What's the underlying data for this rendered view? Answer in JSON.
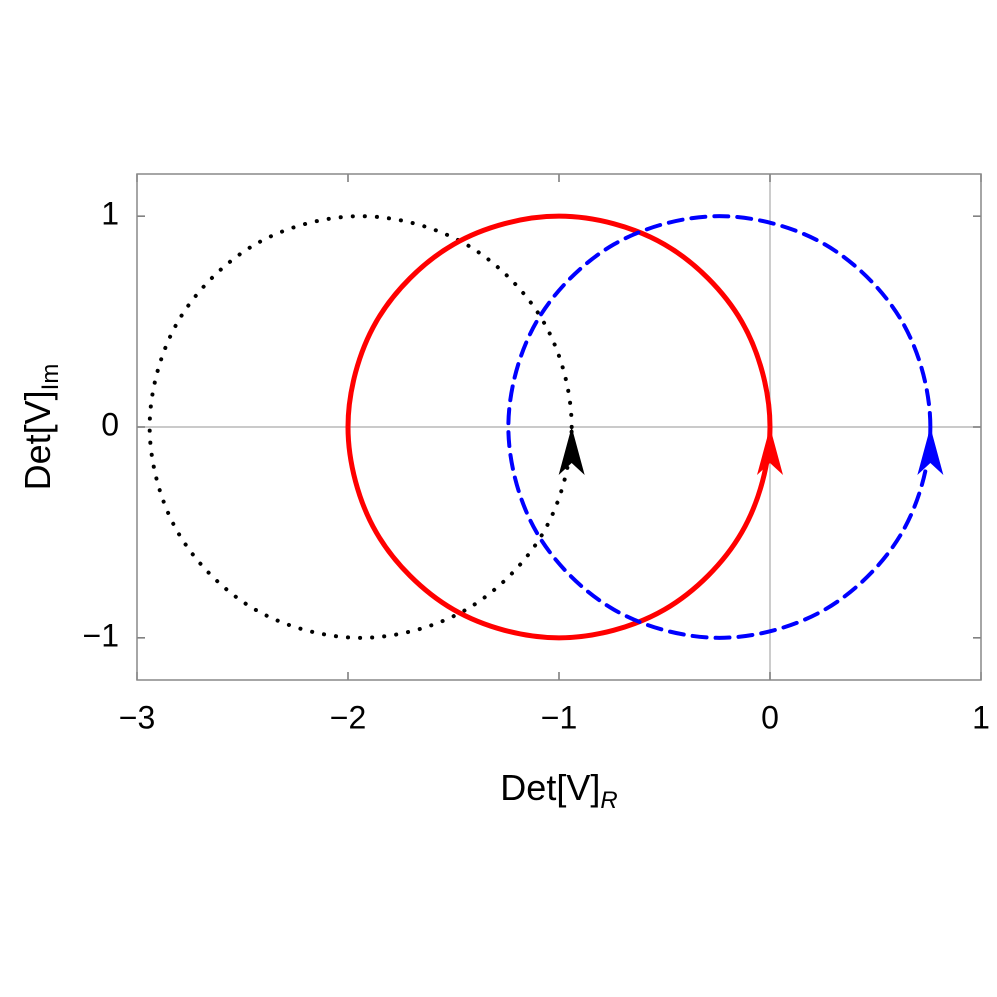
{
  "chart_data": {
    "type": "line",
    "xlabel": "Det[V]",
    "xlabel_sub": "R",
    "ylabel": "Det[V]",
    "ylabel_sub": "Im",
    "xlim": [
      -3,
      1
    ],
    "ylim": [
      -1.2,
      1.2
    ],
    "xticks": [
      {
        "value": -3,
        "label": "−3"
      },
      {
        "value": -2,
        "label": "−2"
      },
      {
        "value": -1,
        "label": "−1"
      },
      0,
      1
    ],
    "yticks": [
      {
        "value": -1,
        "label": "−1"
      },
      0,
      1
    ],
    "zero_lines": true,
    "arrows": true,
    "series": [
      {
        "color": "#000000",
        "style": "dotted",
        "x": [
          -0.94,
          -1.074,
          -1.44,
          -1.94,
          -2.44,
          -2.806,
          -2.94,
          -2.806,
          -2.44,
          -1.94,
          -1.44,
          -1.074,
          -0.94
        ],
        "y": [
          0,
          0.5,
          0.866,
          1,
          0.866,
          0.5,
          0,
          -0.5,
          -0.866,
          -1,
          -0.866,
          -0.5,
          0
        ]
      },
      {
        "color": "#ff0000",
        "style": "solid",
        "x": [
          0,
          -0.134,
          -0.5,
          -1,
          -1.5,
          -1.866,
          -2,
          -1.866,
          -1.5,
          -1,
          -0.5,
          -0.134,
          0
        ],
        "y": [
          0,
          0.5,
          0.866,
          1,
          0.866,
          0.5,
          0,
          -0.5,
          -0.866,
          -1,
          -0.866,
          -0.5,
          0
        ]
      },
      {
        "color": "#0000ff",
        "style": "dashed",
        "x": [
          0.76,
          0.626,
          0.26,
          -0.24,
          -0.74,
          -1.106,
          -1.24,
          -1.106,
          -0.74,
          -0.24,
          0.26,
          0.626,
          0.76
        ],
        "y": [
          0,
          0.5,
          0.866,
          1,
          0.866,
          0.5,
          0,
          -0.5,
          -0.866,
          -1,
          -0.866,
          -0.5,
          0
        ]
      }
    ]
  }
}
